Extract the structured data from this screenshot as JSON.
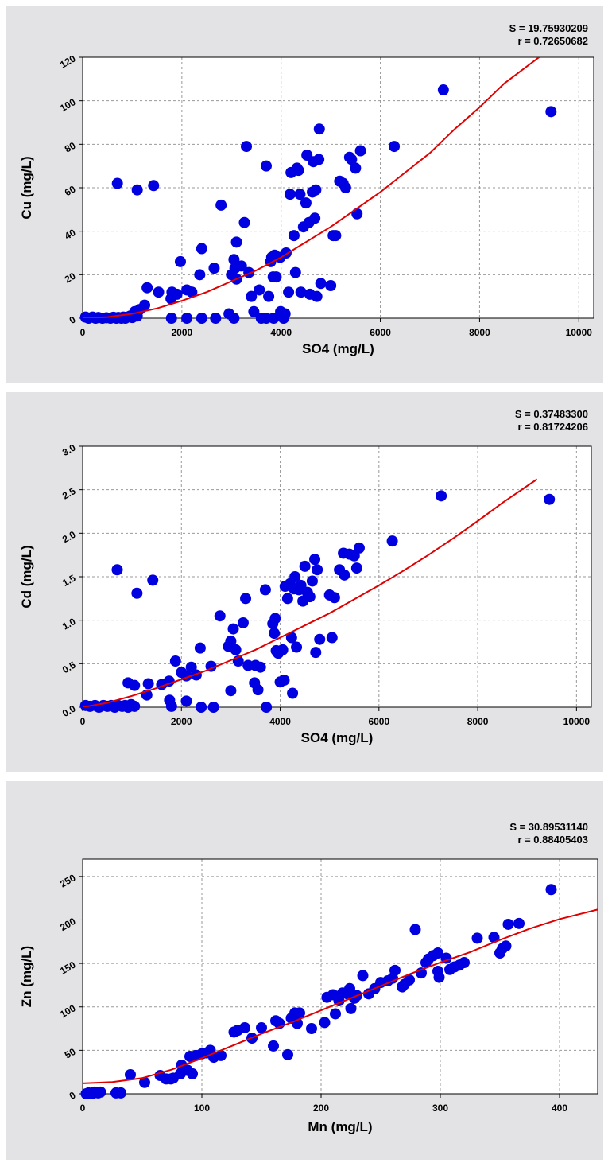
{
  "chart_data": [
    {
      "type": "scatter",
      "stats": {
        "s": "S = 19.75930209",
        "r": "r = 0.72650682"
      },
      "xlabel": "SO4 (mg/L)",
      "ylabel": "Cu (mg/L)",
      "xlim": [
        0,
        10300
      ],
      "ylim": [
        0,
        120
      ],
      "xticks": [
        "0",
        "2000",
        "4000",
        "6000",
        "8000",
        "10000"
      ],
      "xtick_values": [
        0,
        2000,
        4000,
        6000,
        8000,
        10000
      ],
      "yticks": [
        "0",
        "20",
        "40",
        "60",
        "80",
        "100",
        "120"
      ],
      "ytick_values": [
        0,
        20,
        40,
        60,
        80,
        100,
        120
      ],
      "grid": true,
      "marker_color": "#0000e0",
      "fit_color": "#e00000",
      "fit_line": [
        [
          0,
          0
        ],
        [
          500,
          0.5
        ],
        [
          1000,
          2
        ],
        [
          1500,
          4.5
        ],
        [
          2000,
          8
        ],
        [
          2500,
          12
        ],
        [
          3000,
          17
        ],
        [
          3500,
          22
        ],
        [
          4000,
          28
        ],
        [
          4500,
          35
        ],
        [
          5000,
          42
        ],
        [
          5500,
          50
        ],
        [
          6000,
          58
        ],
        [
          6500,
          67
        ],
        [
          7000,
          76
        ],
        [
          7500,
          87
        ],
        [
          8000,
          97
        ],
        [
          8500,
          108
        ],
        [
          9200,
          120
        ]
      ],
      "points": [
        [
          60,
          0.5
        ],
        [
          120,
          0
        ],
        [
          200,
          0.5
        ],
        [
          260,
          0
        ],
        [
          320,
          0.3
        ],
        [
          400,
          0
        ],
        [
          480,
          0.2
        ],
        [
          560,
          0
        ],
        [
          620,
          0.4
        ],
        [
          680,
          0
        ],
        [
          720,
          0.3
        ],
        [
          780,
          0
        ],
        [
          820,
          0.5
        ],
        [
          860,
          0
        ],
        [
          900,
          0.5
        ],
        [
          960,
          1
        ],
        [
          1000,
          0.3
        ],
        [
          1060,
          2
        ],
        [
          1100,
          1
        ],
        [
          1150,
          4
        ],
        [
          1250,
          6
        ],
        [
          1050,
          3
        ],
        [
          700,
          62
        ],
        [
          1100,
          59
        ],
        [
          1430,
          61
        ],
        [
          1300,
          14
        ],
        [
          1530,
          12
        ],
        [
          1800,
          12
        ],
        [
          1780,
          9
        ],
        [
          1900,
          11
        ],
        [
          2100,
          13
        ],
        [
          2200,
          12
        ],
        [
          1790,
          0
        ],
        [
          2100,
          0
        ],
        [
          2400,
          0
        ],
        [
          2680,
          0
        ],
        [
          1970,
          26
        ],
        [
          2360,
          20
        ],
        [
          2400,
          32
        ],
        [
          2650,
          23
        ],
        [
          2790,
          52
        ],
        [
          3000,
          20
        ],
        [
          3050,
          27
        ],
        [
          3070,
          23
        ],
        [
          3100,
          35
        ],
        [
          3100,
          18
        ],
        [
          3200,
          24
        ],
        [
          3260,
          44
        ],
        [
          3300,
          79
        ],
        [
          3350,
          21
        ],
        [
          3400,
          10
        ],
        [
          3450,
          3
        ],
        [
          3560,
          13
        ],
        [
          3600,
          0
        ],
        [
          3700,
          70
        ],
        [
          3750,
          10
        ],
        [
          3790,
          26
        ],
        [
          3810,
          28
        ],
        [
          3840,
          19
        ],
        [
          3870,
          29
        ],
        [
          3900,
          19
        ],
        [
          3980,
          28
        ],
        [
          3990,
          3
        ],
        [
          4050,
          0
        ],
        [
          4080,
          2
        ],
        [
          4100,
          30
        ],
        [
          4150,
          12
        ],
        [
          4180,
          57
        ],
        [
          4200,
          67
        ],
        [
          4260,
          38
        ],
        [
          4290,
          21
        ],
        [
          4320,
          69
        ],
        [
          4350,
          68
        ],
        [
          4380,
          57
        ],
        [
          4400,
          12
        ],
        [
          4450,
          42
        ],
        [
          4500,
          53
        ],
        [
          4520,
          75
        ],
        [
          4560,
          44
        ],
        [
          4580,
          11
        ],
        [
          4630,
          58
        ],
        [
          4650,
          72
        ],
        [
          4680,
          46
        ],
        [
          4700,
          59
        ],
        [
          4720,
          10
        ],
        [
          4760,
          73
        ],
        [
          4770,
          87
        ],
        [
          4800,
          16
        ],
        [
          5000,
          15
        ],
        [
          5050,
          38
        ],
        [
          5100,
          38
        ],
        [
          5180,
          63
        ],
        [
          5250,
          62
        ],
        [
          5300,
          60
        ],
        [
          5380,
          74
        ],
        [
          5420,
          73
        ],
        [
          5500,
          69
        ],
        [
          5530,
          48
        ],
        [
          5600,
          77
        ],
        [
          2950,
          2
        ],
        [
          3050,
          0
        ],
        [
          3700,
          0
        ],
        [
          3850,
          0
        ],
        [
          6280,
          79
        ],
        [
          7270,
          105
        ],
        [
          9440,
          95
        ]
      ]
    },
    {
      "type": "scatter",
      "stats": {
        "s": "S = 0.37483300",
        "r": "r = 0.81724206"
      },
      "xlabel": "SO4 (mg/L)",
      "ylabel": "Cd (mg/L)",
      "xlim": [
        0,
        10300
      ],
      "ylim": [
        0,
        3.0
      ],
      "xticks": [
        "0",
        "2000",
        "4000",
        "6000",
        "8000",
        "10000"
      ],
      "xtick_values": [
        0,
        2000,
        4000,
        6000,
        8000,
        10000
      ],
      "yticks": [
        "0.0",
        "0.5",
        "1.0",
        "1.5",
        "2.0",
        "2.5",
        "3.0"
      ],
      "ytick_values": [
        0,
        0.5,
        1.0,
        1.5,
        2.0,
        2.5,
        3.0
      ],
      "grid": true,
      "marker_color": "#0000e0",
      "fit_color": "#e00000",
      "fit_line": [
        [
          0,
          0
        ],
        [
          500,
          0.05
        ],
        [
          1000,
          0.13
        ],
        [
          1500,
          0.22
        ],
        [
          2000,
          0.32
        ],
        [
          2500,
          0.42
        ],
        [
          3000,
          0.54
        ],
        [
          3500,
          0.66
        ],
        [
          4000,
          0.8
        ],
        [
          4500,
          0.94
        ],
        [
          5000,
          1.08
        ],
        [
          5500,
          1.24
        ],
        [
          6000,
          1.4
        ],
        [
          6500,
          1.57
        ],
        [
          7000,
          1.75
        ],
        [
          7500,
          1.94
        ],
        [
          8000,
          2.14
        ],
        [
          8500,
          2.35
        ],
        [
          9200,
          2.62
        ]
      ],
      "points": [
        [
          60,
          0.02
        ],
        [
          150,
          0.01
        ],
        [
          250,
          0.02
        ],
        [
          330,
          0
        ],
        [
          420,
          0.02
        ],
        [
          500,
          0.01
        ],
        [
          580,
          0.02
        ],
        [
          650,
          0
        ],
        [
          720,
          0.02
        ],
        [
          800,
          0.01
        ],
        [
          860,
          0.02
        ],
        [
          920,
          0
        ],
        [
          980,
          0.03
        ],
        [
          1050,
          0.01
        ],
        [
          1000,
          0.02
        ],
        [
          700,
          1.58
        ],
        [
          1100,
          1.31
        ],
        [
          1420,
          1.46
        ],
        [
          920,
          0.28
        ],
        [
          1050,
          0.25
        ],
        [
          1300,
          0.14
        ],
        [
          1330,
          0.27
        ],
        [
          1600,
          0.26
        ],
        [
          1750,
          0.3
        ],
        [
          1880,
          0.53
        ],
        [
          2000,
          0.4
        ],
        [
          2100,
          0.36
        ],
        [
          2200,
          0.46
        ],
        [
          2300,
          0.37
        ],
        [
          2380,
          0.68
        ],
        [
          2600,
          0.47
        ],
        [
          1760,
          0.08
        ],
        [
          1800,
          0.01
        ],
        [
          2100,
          0.07
        ],
        [
          2400,
          0
        ],
        [
          2650,
          0
        ],
        [
          2780,
          1.05
        ],
        [
          2950,
          0.7
        ],
        [
          3000,
          0.76
        ],
        [
          3050,
          0.9
        ],
        [
          3100,
          0.66
        ],
        [
          3150,
          0.53
        ],
        [
          3250,
          0.97
        ],
        [
          3300,
          1.25
        ],
        [
          3350,
          0.48
        ],
        [
          3500,
          0.48
        ],
        [
          3480,
          0.28
        ],
        [
          3550,
          0.2
        ],
        [
          3600,
          0.46
        ],
        [
          3700,
          1.35
        ],
        [
          3720,
          0
        ],
        [
          3850,
          0.96
        ],
        [
          3880,
          0.85
        ],
        [
          3900,
          1.02
        ],
        [
          3920,
          0.65
        ],
        [
          3960,
          0.62
        ],
        [
          4000,
          0.29
        ],
        [
          4050,
          0.66
        ],
        [
          4080,
          0.31
        ],
        [
          4100,
          1.39
        ],
        [
          4150,
          1.25
        ],
        [
          4200,
          1.42
        ],
        [
          4230,
          0.8
        ],
        [
          4250,
          0.16
        ],
        [
          4280,
          1.36
        ],
        [
          4300,
          1.5
        ],
        [
          4330,
          0.69
        ],
        [
          4380,
          1.35
        ],
        [
          4420,
          1.4
        ],
        [
          4460,
          1.22
        ],
        [
          4500,
          1.62
        ],
        [
          4550,
          1.32
        ],
        [
          4600,
          1.27
        ],
        [
          4650,
          1.45
        ],
        [
          4700,
          1.7
        ],
        [
          4720,
          0.63
        ],
        [
          4750,
          1.58
        ],
        [
          4800,
          0.78
        ],
        [
          5000,
          1.29
        ],
        [
          5050,
          0.8
        ],
        [
          5100,
          1.26
        ],
        [
          5200,
          1.58
        ],
        [
          5280,
          1.77
        ],
        [
          5300,
          1.52
        ],
        [
          5400,
          1.76
        ],
        [
          5500,
          1.74
        ],
        [
          5550,
          1.6
        ],
        [
          5600,
          1.83
        ],
        [
          3000,
          0.19
        ],
        [
          6270,
          1.91
        ],
        [
          7260,
          2.43
        ],
        [
          9450,
          2.39
        ]
      ]
    },
    {
      "type": "scatter",
      "stats": {
        "s": "S = 30.89531140",
        "r": "r = 0.88405403"
      },
      "xlabel": "Mn (mg/L)",
      "ylabel": "Zn (mg/L)",
      "xlim": [
        0,
        432
      ],
      "ylim": [
        0,
        270
      ],
      "xticks": [
        "0",
        "100",
        "200",
        "300",
        "400"
      ],
      "xtick_values": [
        0,
        100,
        200,
        300,
        400
      ],
      "yticks": [
        "0",
        "50",
        "100",
        "150",
        "200",
        "250"
      ],
      "ytick_values": [
        0,
        50,
        100,
        150,
        200,
        250
      ],
      "grid": true,
      "marker_color": "#0000e0",
      "fit_color": "#e00000",
      "fit_line": [
        [
          0,
          12
        ],
        [
          25,
          13.5
        ],
        [
          50,
          18
        ],
        [
          75,
          28
        ],
        [
          100,
          41
        ],
        [
          125,
          55
        ],
        [
          150,
          69
        ],
        [
          175,
          82
        ],
        [
          200,
          96
        ],
        [
          225,
          110
        ],
        [
          250,
          124
        ],
        [
          275,
          138
        ],
        [
          300,
          151
        ],
        [
          325,
          163
        ],
        [
          350,
          177
        ],
        [
          375,
          190
        ],
        [
          400,
          201
        ],
        [
          432,
          212
        ]
      ],
      "points": [
        [
          3,
          0
        ],
        [
          5,
          1
        ],
        [
          8,
          0
        ],
        [
          10,
          2
        ],
        [
          13,
          1
        ],
        [
          15,
          2
        ],
        [
          28,
          1
        ],
        [
          32,
          1
        ],
        [
          40,
          22
        ],
        [
          52,
          13
        ],
        [
          65,
          21
        ],
        [
          70,
          17
        ],
        [
          74,
          17
        ],
        [
          76,
          18
        ],
        [
          82,
          23
        ],
        [
          83,
          33
        ],
        [
          88,
          27
        ],
        [
          90,
          43
        ],
        [
          92,
          23
        ],
        [
          95,
          44
        ],
        [
          100,
          46
        ],
        [
          104,
          47
        ],
        [
          107,
          50
        ],
        [
          110,
          42
        ],
        [
          116,
          44
        ],
        [
          127,
          71
        ],
        [
          130,
          73
        ],
        [
          136,
          76
        ],
        [
          142,
          64
        ],
        [
          150,
          76
        ],
        [
          160,
          55
        ],
        [
          162,
          84
        ],
        [
          165,
          81
        ],
        [
          172,
          45
        ],
        [
          175,
          87
        ],
        [
          178,
          90
        ],
        [
          178,
          93
        ],
        [
          180,
          81
        ],
        [
          182,
          93
        ],
        [
          192,
          75
        ],
        [
          203,
          82
        ],
        [
          205,
          111
        ],
        [
          210,
          114
        ],
        [
          212,
          92
        ],
        [
          215,
          107
        ],
        [
          218,
          116
        ],
        [
          222,
          115
        ],
        [
          224,
          121
        ],
        [
          225,
          98
        ],
        [
          228,
          110
        ],
        [
          230,
          113
        ],
        [
          235,
          136
        ],
        [
          240,
          115
        ],
        [
          245,
          121
        ],
        [
          250,
          128
        ],
        [
          256,
          130
        ],
        [
          260,
          133
        ],
        [
          262,
          142
        ],
        [
          268,
          123
        ],
        [
          270,
          126
        ],
        [
          274,
          131
        ],
        [
          279,
          189
        ],
        [
          284,
          139
        ],
        [
          288,
          151
        ],
        [
          290,
          155
        ],
        [
          294,
          159
        ],
        [
          298,
          162
        ],
        [
          298,
          141
        ],
        [
          299,
          134
        ],
        [
          305,
          156
        ],
        [
          308,
          143
        ],
        [
          312,
          146
        ],
        [
          316,
          148
        ],
        [
          320,
          151
        ],
        [
          331,
          179
        ],
        [
          345,
          180
        ],
        [
          350,
          162
        ],
        [
          352,
          167
        ],
        [
          355,
          170
        ],
        [
          357,
          195
        ],
        [
          366,
          196
        ],
        [
          393,
          235
        ]
      ]
    }
  ]
}
